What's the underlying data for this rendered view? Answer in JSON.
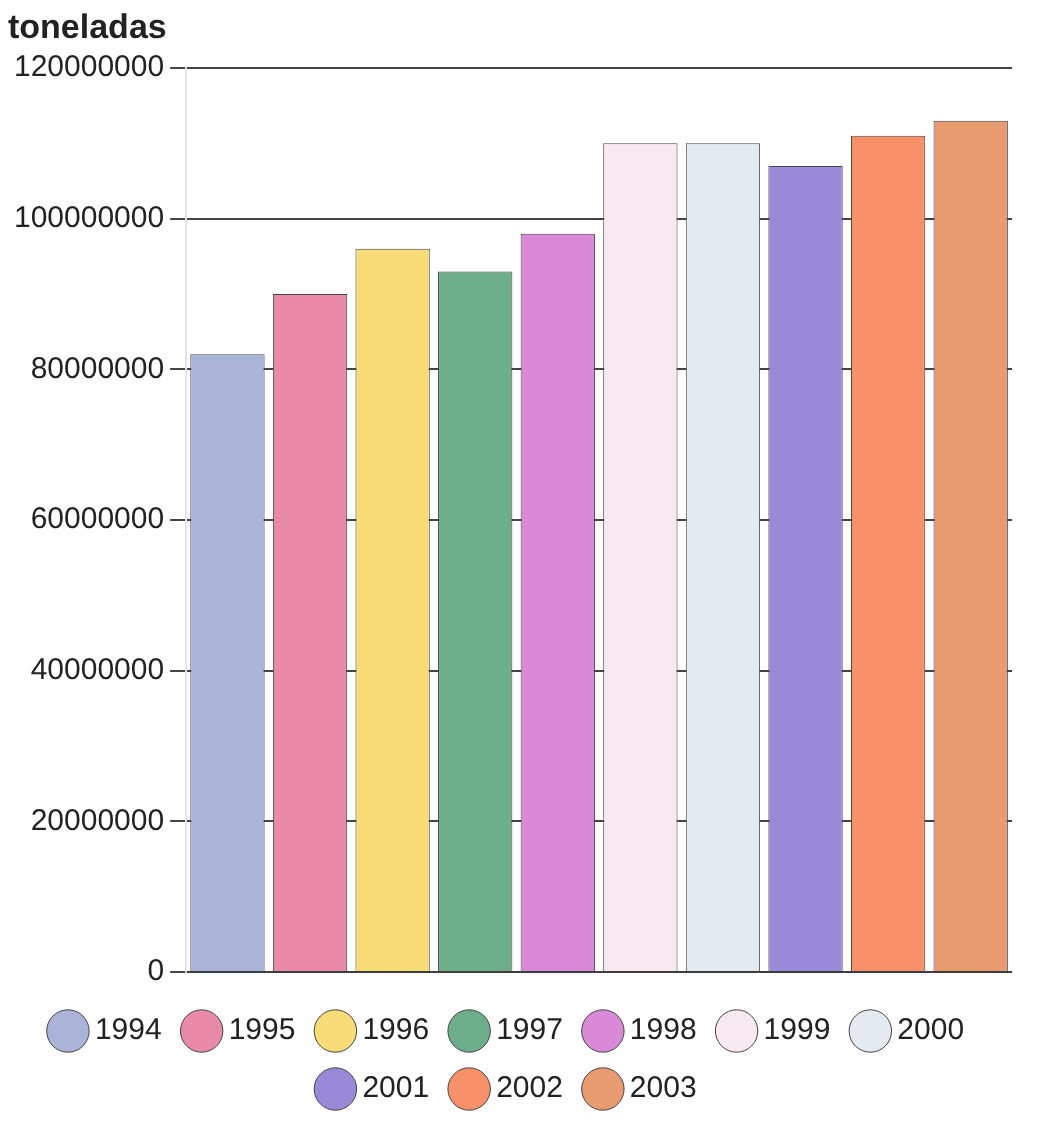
{
  "chart_data": {
    "type": "bar",
    "ylabel": "toneladas",
    "categories": [
      null,
      null,
      null,
      null,
      null,
      null,
      null,
      null,
      null,
      null
    ],
    "series": [
      {
        "name": "1994",
        "color": "#a9b4d8",
        "values": [
          82000000,
          null,
          null,
          null,
          null,
          null,
          null,
          null,
          null,
          null
        ]
      },
      {
        "name": "1995",
        "color": "#e88aa8",
        "values": [
          null,
          90000000,
          null,
          null,
          null,
          null,
          null,
          null,
          null,
          null
        ]
      },
      {
        "name": "1996",
        "color": "#f8dc78",
        "values": [
          null,
          null,
          96000000,
          null,
          null,
          null,
          null,
          null,
          null,
          null
        ]
      },
      {
        "name": "1997",
        "color": "#6fae8a",
        "values": [
          null,
          null,
          null,
          93000000,
          null,
          null,
          null,
          null,
          null,
          null
        ]
      },
      {
        "name": "1998",
        "color": "#d88ad8",
        "values": [
          null,
          null,
          null,
          null,
          98000000,
          null,
          null,
          null,
          null,
          null
        ]
      },
      {
        "name": "1999",
        "color": "#f8e8f0",
        "values": [
          null,
          null,
          null,
          null,
          null,
          110000000,
          null,
          null,
          null,
          null
        ]
      },
      {
        "name": "2000",
        "color": "#e4eaf0",
        "values": [
          null,
          null,
          null,
          null,
          null,
          null,
          110000000,
          null,
          null,
          null
        ]
      },
      {
        "name": "2001",
        "color": "#9a88d8",
        "values": [
          null,
          null,
          null,
          null,
          null,
          null,
          null,
          107000000,
          null,
          null
        ]
      },
      {
        "name": "2002",
        "color": "#f8906a",
        "values": [
          null,
          null,
          null,
          null,
          null,
          null,
          null,
          null,
          111000000,
          null
        ]
      },
      {
        "name": "2003",
        "color": "#e89a70",
        "values": [
          null,
          null,
          null,
          null,
          null,
          null,
          null,
          null,
          null,
          113000000
        ]
      }
    ],
    "ylim": [
      0,
      120000000
    ],
    "yticks": [
      0,
      20000000,
      40000000,
      60000000,
      80000000,
      100000000,
      120000000
    ],
    "grid": "y",
    "legend": "bottom",
    "tick_labels": "y"
  }
}
